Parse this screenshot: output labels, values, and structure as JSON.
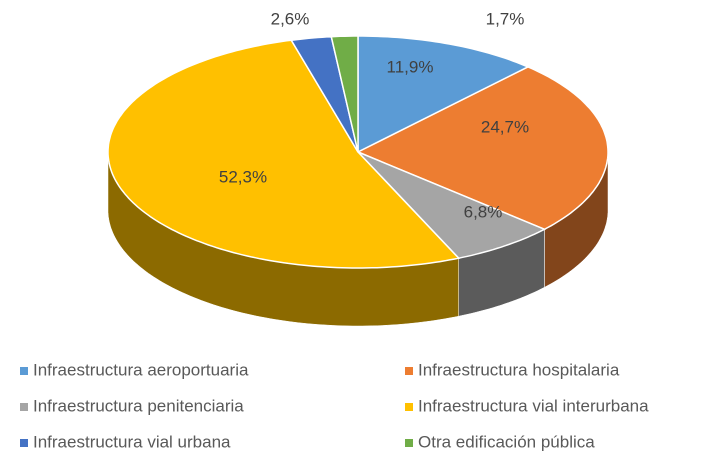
{
  "chart_data": {
    "type": "pie3d",
    "categories": [
      "Infraestructura aeroportuaria",
      "Infraestructura hospitalaria",
      "Infraestructura penitenciaria",
      "Infraestructura vial interurbana",
      "Infraestructura vial urbana",
      "Otra edificación pública"
    ],
    "values": [
      11.9,
      24.7,
      6.8,
      52.3,
      2.6,
      1.7
    ],
    "value_labels": [
      "11,9%",
      "24,7%",
      "6,8%",
      "52,3%",
      "2,6%",
      "1,7%"
    ],
    "colors": [
      "#5b9bd5",
      "#ed7d31",
      "#a5a5a5",
      "#ffc000",
      "#4472c4",
      "#70ad47"
    ],
    "legend": "bottom"
  }
}
